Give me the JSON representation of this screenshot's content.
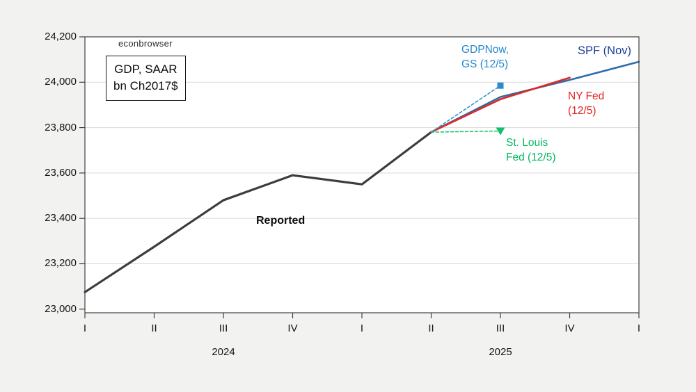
{
  "page": {
    "background_outer": "#f2f2f0",
    "plot_background": "#ffffff",
    "plot_border_color": "#3f3f3f",
    "gridline_color": "#d9d9d9"
  },
  "watermark": "econbrowser",
  "annotation_box": {
    "line1": "GDP, SAAR",
    "line2": "bn Ch2017$"
  },
  "labels": {
    "reported": "Reported",
    "gdpnow_line1": "GDPNow,",
    "gdpnow_line2": "GS (12/5)",
    "gdpnow_color": "#2489cc",
    "spf": "SPF (Nov)",
    "spf_color": "#1c3f9a",
    "nyfed_line1": "NY Fed",
    "nyfed_line2": "(12/5)",
    "nyfed_color": "#e02420",
    "stlouis_line1": "St. Louis",
    "stlouis_line2": "Fed (12/5)",
    "stlouis_color": "#00b85f"
  },
  "chart_data": {
    "type": "line",
    "title": "GDP, SAAR bn Ch2017$",
    "x_quarters": [
      "2024Q1",
      "2024Q2",
      "2024Q3",
      "2024Q4",
      "2025Q1",
      "2025Q2",
      "2025Q3",
      "2025Q4",
      "2026Q1"
    ],
    "x_tick_labels": [
      "I",
      "II",
      "III",
      "IV",
      "I",
      "II",
      "III",
      "IV",
      "I"
    ],
    "year_labels": [
      {
        "text": "2024",
        "tick_index": 2
      },
      {
        "text": "2025",
        "tick_index": 6
      }
    ],
    "ylim": [
      22984,
      24200
    ],
    "yticks": [
      23000,
      23200,
      23400,
      23600,
      23800,
      24000,
      24200
    ],
    "ytick_labels": [
      "23,000",
      "23,200",
      "23,400",
      "23,600",
      "23,800",
      "24,000",
      "24,200"
    ],
    "grid_values": [
      23200,
      23400,
      23600,
      23800,
      24000
    ],
    "legend_position": "annotations-on-chart",
    "series": [
      {
        "name": "Reported",
        "color": "#3d3d3d",
        "style": "solid",
        "width": 3.2,
        "x": [
          0,
          1,
          2,
          3,
          4,
          5
        ],
        "values": [
          23075,
          23275,
          23480,
          23590,
          23550,
          23780
        ]
      },
      {
        "name": "SPF (Nov)",
        "color": "#2e6dab",
        "style": "solid",
        "width": 2.6,
        "x": [
          5,
          6,
          7,
          8
        ],
        "values": [
          23780,
          23935,
          24010,
          24090
        ]
      },
      {
        "name": "NY Fed (12/5)",
        "color": "#e02824",
        "style": "solid",
        "width": 2.6,
        "x": [
          5,
          6,
          7
        ],
        "values": [
          23780,
          23925,
          24020
        ]
      },
      {
        "name": "GDPNow, GS (12/5)",
        "color": "#2b8ccc",
        "style": "dashed",
        "width": 1.5,
        "marker": "square",
        "x": [
          5,
          6
        ],
        "values": [
          23780,
          23985
        ]
      },
      {
        "name": "St. Louis Fed (12/5)",
        "color": "#12c167",
        "style": "dashed",
        "width": 1.5,
        "marker": "triangle-down",
        "x": [
          5,
          6
        ],
        "values": [
          23780,
          23785
        ]
      }
    ]
  }
}
